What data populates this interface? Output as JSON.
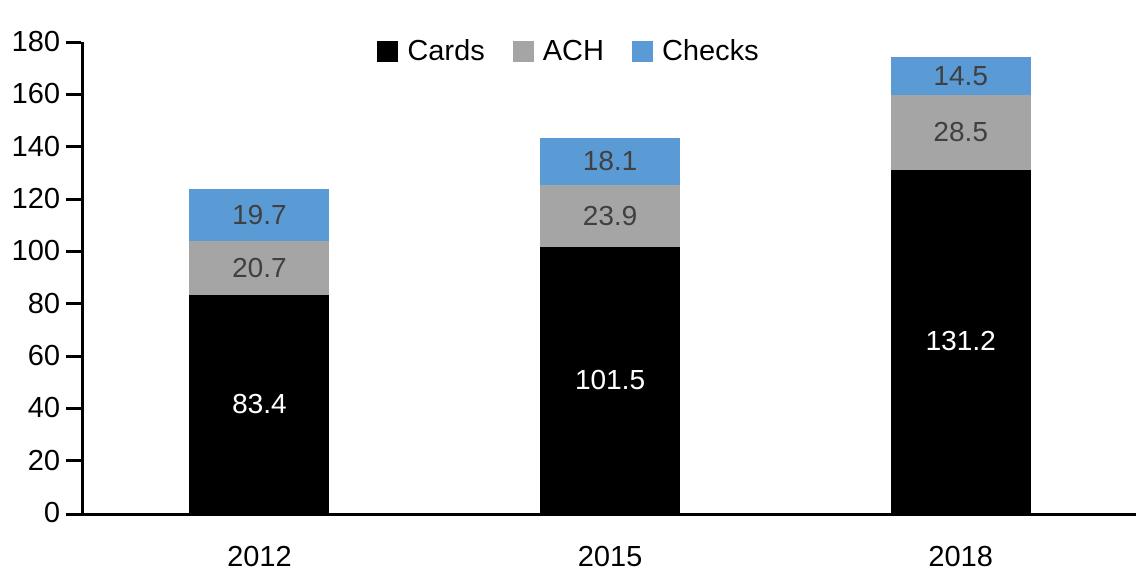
{
  "chart_data": {
    "type": "bar",
    "stacked": true,
    "title": "",
    "xlabel": "",
    "ylabel": "",
    "categories": [
      "2012",
      "2015",
      "2018"
    ],
    "series": [
      {
        "name": "Cards",
        "color": "#000000",
        "label_color": "#ffffff",
        "values": [
          83.4,
          101.5,
          131.2
        ]
      },
      {
        "name": "ACH",
        "color": "#a5a5a5",
        "label_color": "#404040",
        "values": [
          20.7,
          23.9,
          28.5
        ]
      },
      {
        "name": "Checks",
        "color": "#5b9bd5",
        "label_color": "#404040",
        "values": [
          19.7,
          18.1,
          14.5
        ]
      }
    ],
    "data_labels_decimals": 1,
    "y_axis": {
      "min": 0,
      "max": 180,
      "step": 20,
      "ticks": [
        "0",
        "20",
        "40",
        "60",
        "80",
        "100",
        "120",
        "140",
        "160",
        "180"
      ]
    },
    "legend": {
      "position": "top",
      "items": [
        "Cards",
        "ACH",
        "Checks"
      ]
    },
    "grid": false,
    "colors": {
      "axis": "#000000",
      "background": "#ffffff",
      "tick_text": "#000000"
    }
  }
}
